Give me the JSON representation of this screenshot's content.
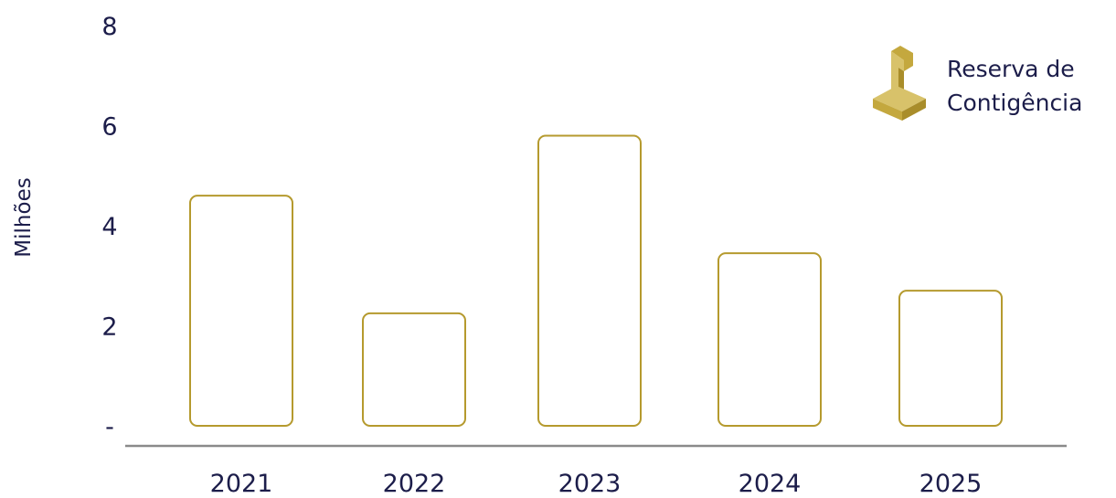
{
  "chart_data": {
    "type": "bar",
    "categories": [
      "2021",
      "2022",
      "2023",
      "2024",
      "2025"
    ],
    "series": [
      {
        "name": "Reserva de Contigência",
        "values": [
          4.6,
          2.25,
          5.8,
          3.45,
          2.7
        ]
      }
    ],
    "ylabel": "Milhões",
    "xlabel": "",
    "ylim": [
      0,
      8
    ],
    "yticks": [
      "-",
      "2",
      "4",
      "6",
      "8"
    ],
    "legend": {
      "lines": [
        "Reserva de",
        "Contigência"
      ],
      "position": "top-right",
      "icon": "podium-flag-icon"
    },
    "colors": {
      "bar_stroke": "#b59a2e",
      "bar_fill": "#ffffff",
      "axis": "#8a8a8a",
      "text": "#1c1d4a",
      "icon_light": "#d8c26a",
      "icon_mid": "#c4a83e",
      "icon_dark": "#a98d2a"
    }
  }
}
